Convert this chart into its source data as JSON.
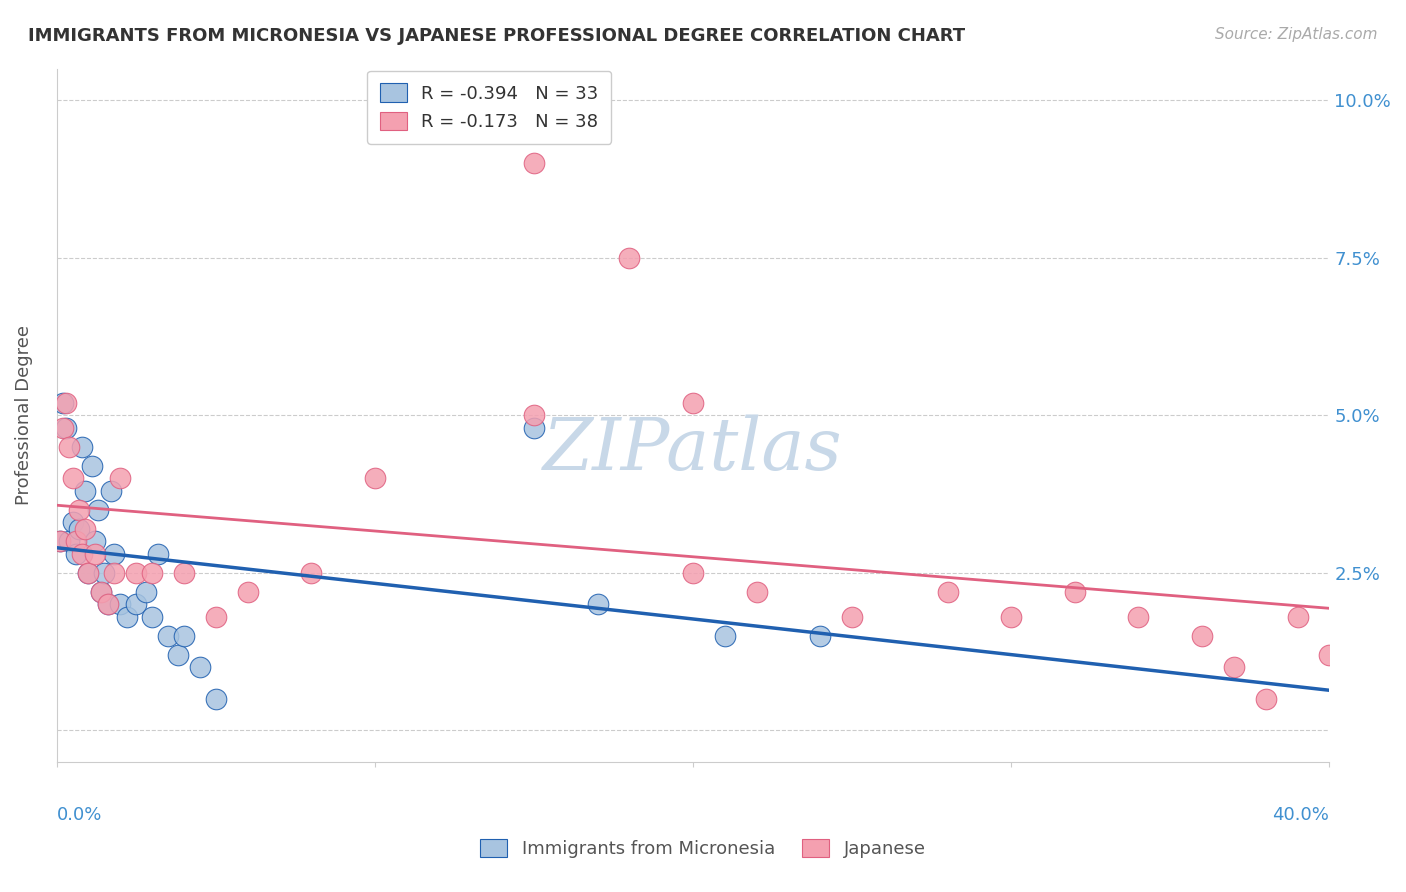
{
  "title": "IMMIGRANTS FROM MICRONESIA VS JAPANESE PROFESSIONAL DEGREE CORRELATION CHART",
  "source": "Source: ZipAtlas.com",
  "ylabel": "Professional Degree",
  "yticks": [
    0.0,
    0.025,
    0.05,
    0.075,
    0.1
  ],
  "ytick_labels": [
    "",
    "2.5%",
    "5.0%",
    "7.5%",
    "10.0%"
  ],
  "xmin": 0.0,
  "xmax": 0.4,
  "ymin": -0.005,
  "ymax": 0.105,
  "legend1_r": "R = -0.394",
  "legend1_n": "N = 33",
  "legend2_r": "R = -0.173",
  "legend2_n": "N = 38",
  "color_blue": "#a8c4e0",
  "color_pink": "#f4a0b0",
  "color_line_blue": "#2060b0",
  "color_line_pink": "#e06080",
  "color_text_blue": "#4090d0",
  "watermark_color": "#c8d8e8",
  "micronesia_x": [
    0.001,
    0.002,
    0.003,
    0.004,
    0.005,
    0.006,
    0.007,
    0.008,
    0.009,
    0.01,
    0.011,
    0.012,
    0.013,
    0.014,
    0.015,
    0.016,
    0.017,
    0.018,
    0.02,
    0.022,
    0.025,
    0.028,
    0.03,
    0.032,
    0.035,
    0.038,
    0.04,
    0.045,
    0.05,
    0.15,
    0.17,
    0.21,
    0.24
  ],
  "micronesia_y": [
    0.03,
    0.052,
    0.048,
    0.03,
    0.033,
    0.028,
    0.032,
    0.045,
    0.038,
    0.025,
    0.042,
    0.03,
    0.035,
    0.022,
    0.025,
    0.02,
    0.038,
    0.028,
    0.02,
    0.018,
    0.02,
    0.022,
    0.018,
    0.028,
    0.015,
    0.012,
    0.015,
    0.01,
    0.005,
    0.048,
    0.02,
    0.015,
    0.015
  ],
  "japanese_x": [
    0.001,
    0.002,
    0.003,
    0.004,
    0.005,
    0.006,
    0.007,
    0.008,
    0.009,
    0.01,
    0.012,
    0.014,
    0.016,
    0.018,
    0.02,
    0.025,
    0.03,
    0.04,
    0.05,
    0.06,
    0.08,
    0.1,
    0.15,
    0.18,
    0.2,
    0.22,
    0.25,
    0.28,
    0.3,
    0.32,
    0.34,
    0.36,
    0.37,
    0.38,
    0.39,
    0.4,
    0.15,
    0.2
  ],
  "japanese_y": [
    0.03,
    0.048,
    0.052,
    0.045,
    0.04,
    0.03,
    0.035,
    0.028,
    0.032,
    0.025,
    0.028,
    0.022,
    0.02,
    0.025,
    0.04,
    0.025,
    0.025,
    0.025,
    0.018,
    0.022,
    0.025,
    0.04,
    0.09,
    0.075,
    0.052,
    0.022,
    0.018,
    0.022,
    0.018,
    0.022,
    0.018,
    0.015,
    0.01,
    0.005,
    0.018,
    0.012,
    0.05,
    0.025
  ]
}
